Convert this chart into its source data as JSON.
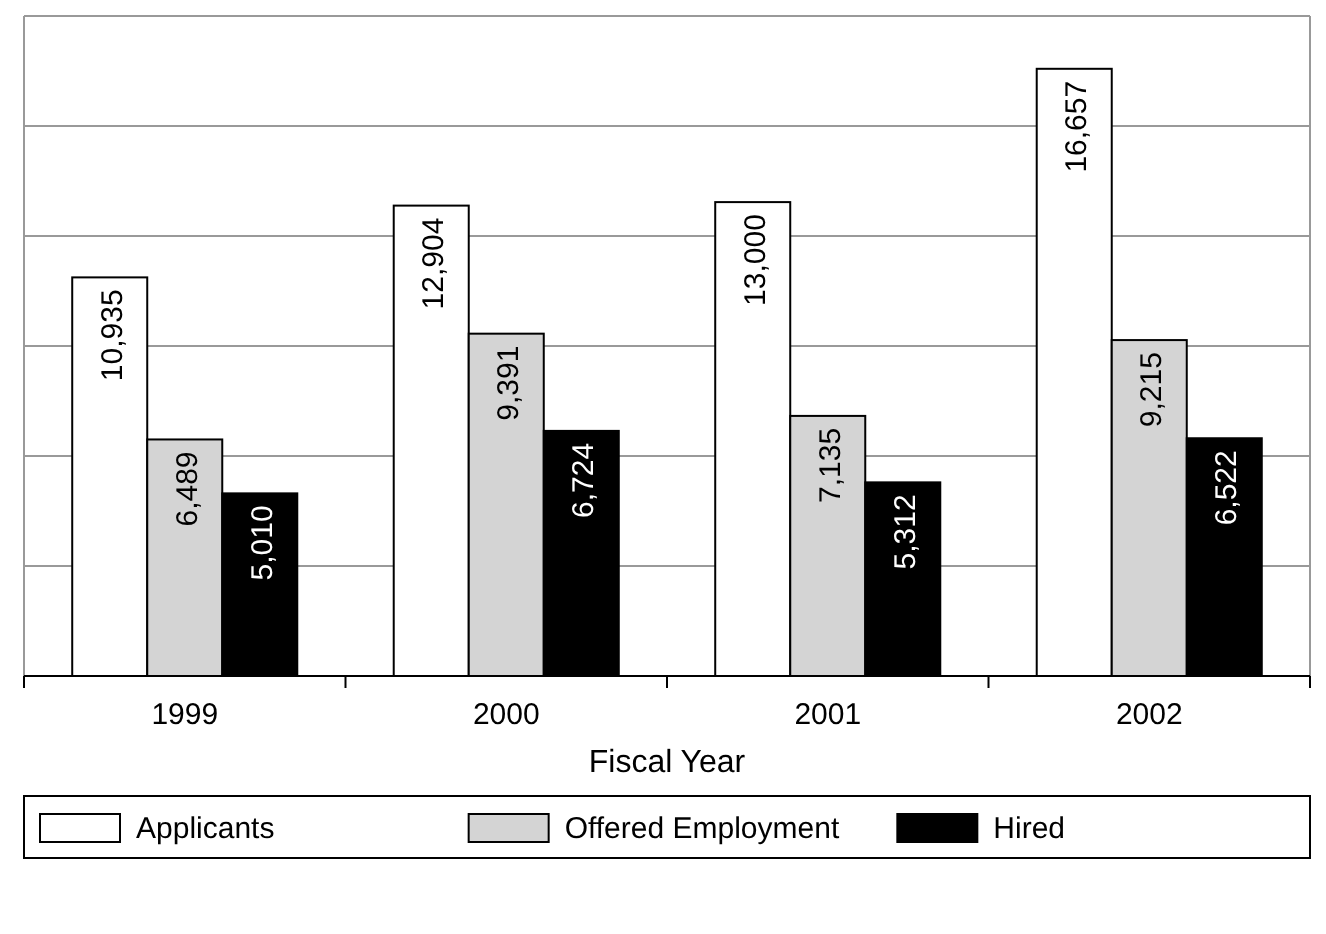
{
  "chart_data": {
    "type": "bar",
    "xlabel": "Fiscal Year",
    "categories": [
      "1999",
      "2000",
      "2001",
      "2002"
    ],
    "series": [
      {
        "name": "Applicants",
        "color": "#ffffff",
        "values": [
          10935,
          12904,
          13000,
          16657
        ],
        "value_labels": [
          "10,935",
          "12,904",
          "13,000",
          "16,657"
        ]
      },
      {
        "name": "Offered Employment",
        "color": "#d4d4d4",
        "values": [
          6489,
          9391,
          7135,
          9215
        ],
        "value_labels": [
          "6,489",
          "9,391",
          "7,135",
          "9,215"
        ]
      },
      {
        "name": "Hired",
        "color": "#000000",
        "values": [
          5010,
          6724,
          5312,
          6522
        ],
        "value_labels": [
          "5,010",
          "6,724",
          "5,312",
          "6,522"
        ]
      }
    ],
    "tick_labels": "x",
    "grid": "y",
    "legend": "bottom"
  }
}
